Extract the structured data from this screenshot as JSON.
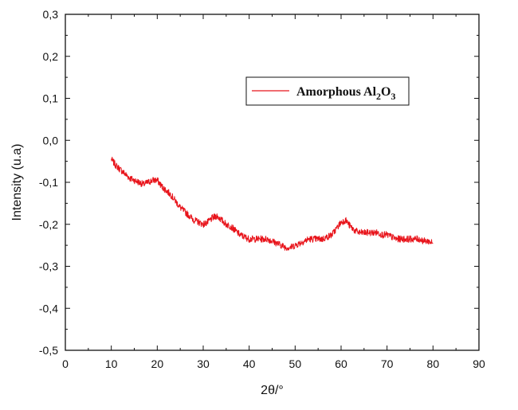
{
  "chart_data": {
    "type": "line",
    "xlabel": "2θ/°",
    "ylabel": "Intensity (u.a)",
    "xlim": [
      0,
      90
    ],
    "ylim": [
      -0.5,
      0.3
    ],
    "x_ticks": [
      0,
      10,
      20,
      30,
      40,
      50,
      60,
      70,
      80,
      90
    ],
    "x_tick_labels": [
      "0",
      "10",
      "20",
      "30",
      "40",
      "50",
      "60",
      "70",
      "80",
      "90"
    ],
    "y_ticks": [
      -0.5,
      -0.4,
      -0.3,
      -0.2,
      -0.1,
      0.0,
      0.1,
      0.2,
      0.3
    ],
    "y_tick_labels": [
      "-0,5",
      "-0,4",
      "-0,3",
      "-0,2",
      "-0,1",
      "0,0",
      "0,1",
      "0,2",
      "0,3"
    ],
    "grid": false,
    "legend_position": "top-right",
    "legend": {
      "label_prefix": "Amorphous Al",
      "sub1": "2",
      "label_mid": "O",
      "sub2": "3"
    },
    "series": [
      {
        "color": "#e8141b",
        "noise_amplitude": 0.008,
        "x": [
          10,
          11,
          12,
          13,
          14,
          15,
          16,
          17,
          18,
          19,
          20,
          21,
          22,
          23,
          24,
          25,
          26,
          27,
          28,
          29,
          30,
          31,
          32,
          33,
          34,
          35,
          36,
          37,
          38,
          39,
          40,
          41,
          42,
          43,
          44,
          45,
          46,
          47,
          48,
          49,
          50,
          51,
          52,
          53,
          54,
          55,
          56,
          57,
          58,
          59,
          60,
          61,
          62,
          63,
          64,
          65,
          66,
          67,
          68,
          69,
          70,
          71,
          72,
          73,
          74,
          75,
          76,
          77,
          78,
          79,
          80
        ],
        "y": [
          -0.045,
          -0.06,
          -0.07,
          -0.08,
          -0.09,
          -0.095,
          -0.1,
          -0.105,
          -0.1,
          -0.095,
          -0.095,
          -0.11,
          -0.12,
          -0.13,
          -0.145,
          -0.16,
          -0.17,
          -0.18,
          -0.19,
          -0.195,
          -0.2,
          -0.195,
          -0.185,
          -0.18,
          -0.19,
          -0.2,
          -0.205,
          -0.215,
          -0.225,
          -0.23,
          -0.235,
          -0.235,
          -0.235,
          -0.235,
          -0.235,
          -0.24,
          -0.245,
          -0.25,
          -0.255,
          -0.255,
          -0.25,
          -0.245,
          -0.24,
          -0.235,
          -0.235,
          -0.235,
          -0.235,
          -0.23,
          -0.225,
          -0.21,
          -0.195,
          -0.19,
          -0.205,
          -0.215,
          -0.22,
          -0.22,
          -0.22,
          -0.22,
          -0.22,
          -0.225,
          -0.225,
          -0.23,
          -0.235,
          -0.235,
          -0.235,
          -0.235,
          -0.235,
          -0.235,
          -0.24,
          -0.24,
          -0.245
        ]
      }
    ]
  }
}
